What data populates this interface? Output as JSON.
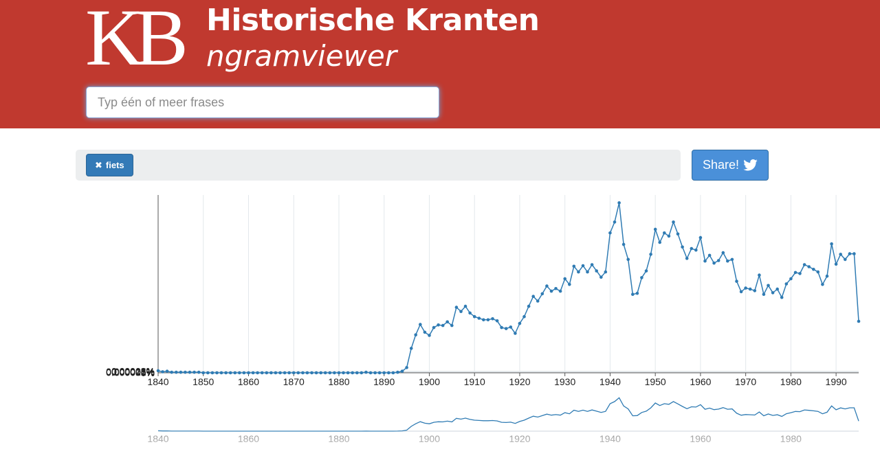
{
  "header": {
    "logo_text": "KB",
    "title": "Historische Kranten",
    "subtitle": "ngramviewer",
    "background_color": "#c0392f"
  },
  "search": {
    "placeholder": "Typ één of meer frases",
    "value": ""
  },
  "terms": [
    {
      "label": "fiets",
      "remove_icon": "close-x-icon"
    }
  ],
  "share": {
    "label": "Share!",
    "icon": "twitter-icon"
  },
  "chart_data": {
    "type": "line",
    "title": "",
    "xlabel": "",
    "ylabel": "",
    "xlim": [
      1840,
      1995
    ],
    "ylim": [
      0,
      3.5e-05
    ],
    "grid": true,
    "line_color": "#2f7bb3",
    "x_ticks": [
      "1840",
      "1850",
      "1860",
      "1870",
      "1880",
      "1890",
      "1900",
      "1910",
      "1920",
      "1930",
      "1940",
      "1950",
      "1960",
      "1970",
      "1980",
      "1990"
    ],
    "y_ticks": [
      "0%",
      "0.000005%",
      "0.00001%",
      "0.000015%",
      "0.00002%",
      "0.000025%",
      "0.00003%"
    ],
    "overview_ticks": [
      "1840",
      "1860",
      "1880",
      "1900",
      "1920",
      "1940",
      "1960",
      "1980"
    ],
    "series": [
      {
        "x": [
          1840,
          1841,
          1842,
          1843,
          1844,
          1845,
          1846,
          1847,
          1848,
          1849,
          1850,
          1851,
          1852,
          1853,
          1854,
          1855,
          1856,
          1857,
          1858,
          1859,
          1860,
          1861,
          1862,
          1863,
          1864,
          1865,
          1866,
          1867,
          1868,
          1869,
          1870,
          1871,
          1872,
          1873,
          1874,
          1875,
          1876,
          1877,
          1878,
          1879,
          1880,
          1881,
          1882,
          1883,
          1884,
          1885,
          1886,
          1887,
          1888,
          1889,
          1890,
          1891,
          1892,
          1893,
          1894,
          1895,
          1896,
          1897,
          1898,
          1899,
          1900,
          1901,
          1902,
          1903,
          1904,
          1905,
          1906,
          1907,
          1908,
          1909,
          1910,
          1911,
          1912,
          1913,
          1914,
          1915,
          1916,
          1917,
          1918,
          1919,
          1920,
          1921,
          1922,
          1923,
          1924,
          1925,
          1926,
          1927,
          1928,
          1929,
          1930,
          1931,
          1932,
          1933,
          1934,
          1935,
          1936,
          1937,
          1938,
          1939,
          1940,
          1941,
          1942,
          1943,
          1944,
          1945,
          1946,
          1947,
          1948,
          1949,
          1950,
          1951,
          1952,
          1953,
          1954,
          1955,
          1956,
          1957,
          1958,
          1959,
          1960,
          1961,
          1962,
          1963,
          1964,
          1965,
          1966,
          1967,
          1968,
          1969,
          1970,
          1971,
          1972,
          1973,
          1974,
          1975,
          1976,
          1977,
          1978,
          1979,
          1980,
          1981,
          1982,
          1983,
          1984,
          1985,
          1986,
          1987,
          1988,
          1989,
          1990,
          1991,
          1992,
          1993,
          1994,
          1995
        ],
        "values": [
          4e-07,
          2e-07,
          3e-07,
          1e-07,
          1e-07,
          1e-07,
          1e-07,
          1e-07,
          1e-07,
          1e-07,
          0,
          0,
          0,
          0,
          0,
          0,
          0,
          0,
          0,
          0,
          0,
          0,
          0,
          0,
          0,
          0,
          0,
          0,
          0,
          0,
          0,
          0,
          0,
          0,
          0,
          0,
          0,
          0,
          0,
          0,
          0,
          0,
          0,
          0,
          0,
          0,
          1e-07,
          0,
          0,
          0,
          0,
          0,
          0,
          1e-07,
          3e-07,
          1e-06,
          4.7e-06,
          7.3e-06,
          9.3e-06,
          7.8e-06,
          7.2e-06,
          8.7e-06,
          9.2e-06,
          9.1e-06,
          9.8e-06,
          9.1e-06,
          1.26e-05,
          1.18e-05,
          1.28e-05,
          1.15e-05,
          1.08e-05,
          1.05e-05,
          1.02e-05,
          1.02e-05,
          1.04e-05,
          1e-05,
          8.7e-06,
          8.5e-06,
          8.8e-06,
          7.6e-06,
          9.5e-06,
          1.08e-05,
          1.28e-05,
          1.47e-05,
          1.38e-05,
          1.52e-05,
          1.67e-05,
          1.57e-05,
          1.62e-05,
          1.57e-05,
          1.81e-05,
          1.7e-05,
          2.05e-05,
          1.94e-05,
          2.06e-05,
          1.94e-05,
          2.08e-05,
          1.96e-05,
          1.84e-05,
          1.94e-05,
          2.69e-05,
          2.9e-05,
          3.27e-05,
          2.47e-05,
          2.18e-05,
          1.51e-05,
          1.53e-05,
          1.83e-05,
          1.96e-05,
          2.28e-05,
          2.76e-05,
          2.51e-05,
          2.69e-05,
          2.63e-05,
          2.9e-05,
          2.67e-05,
          2.42e-05,
          2.2e-05,
          2.39e-05,
          2.36e-05,
          2.6e-05,
          2.15e-05,
          2.26e-05,
          2.11e-05,
          2.16e-05,
          2.31e-05,
          2.15e-05,
          2.18e-05,
          1.76e-05,
          1.56e-05,
          1.63e-05,
          1.61e-05,
          1.58e-05,
          1.88e-05,
          1.51e-05,
          1.68e-05,
          1.54e-05,
          1.61e-05,
          1.45e-05,
          1.71e-05,
          1.81e-05,
          1.93e-05,
          1.91e-05,
          2.08e-05,
          2.04e-05,
          1.99e-05,
          1.94e-05,
          1.7e-05,
          1.86e-05,
          2.48e-05,
          2.09e-05,
          2.28e-05,
          2.18e-05,
          2.29e-05,
          2.29e-05,
          9.9e-06
        ]
      }
    ]
  }
}
